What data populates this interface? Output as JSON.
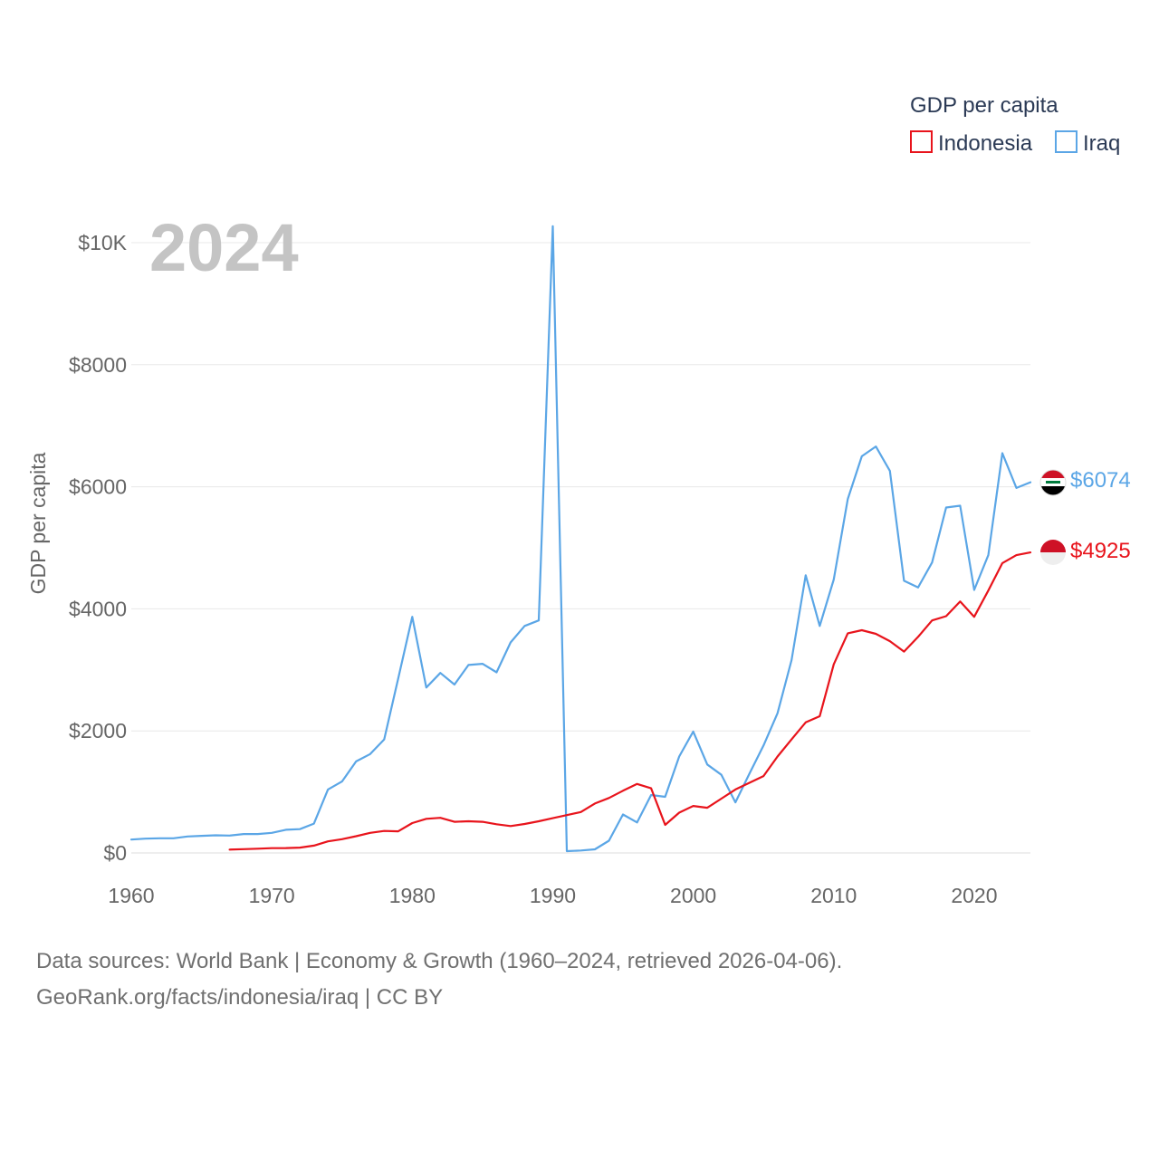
{
  "chart_data": {
    "type": "line",
    "title": "GDP per capita",
    "year_label": "2024",
    "ylabel": "GDP per capita",
    "xlabel": "",
    "xlim": [
      1960,
      2024
    ],
    "ylim": [
      0,
      10000
    ],
    "x_ticks": [
      1960,
      1970,
      1980,
      1990,
      2000,
      2010,
      2020
    ],
    "y_ticks": [
      {
        "value": 0,
        "label": "$0"
      },
      {
        "value": 2000,
        "label": "$2000"
      },
      {
        "value": 4000,
        "label": "$4000"
      },
      {
        "value": 6000,
        "label": "$6000"
      },
      {
        "value": 8000,
        "label": "$8000"
      },
      {
        "value": 10000,
        "label": "$10K"
      }
    ],
    "grid": true,
    "legend_title": "GDP per capita",
    "legend_position": "top-right",
    "series": [
      {
        "name": "Indonesia",
        "color": "#e8141c",
        "end_label": "$4925",
        "x": [
          1967,
          1968,
          1969,
          1970,
          1971,
          1972,
          1973,
          1974,
          1975,
          1976,
          1977,
          1978,
          1979,
          1980,
          1981,
          1982,
          1983,
          1984,
          1985,
          1986,
          1987,
          1988,
          1989,
          1990,
          1991,
          1992,
          1993,
          1994,
          1995,
          1996,
          1997,
          1998,
          1999,
          2000,
          2001,
          2002,
          2003,
          2004,
          2005,
          2006,
          2007,
          2008,
          2009,
          2010,
          2011,
          2012,
          2013,
          2014,
          2015,
          2016,
          2017,
          2018,
          2019,
          2020,
          2021,
          2022,
          2023,
          2024
        ],
        "values": [
          55,
          62,
          70,
          78,
          80,
          88,
          120,
          190,
          225,
          275,
          330,
          360,
          355,
          490,
          560,
          575,
          510,
          520,
          510,
          470,
          440,
          475,
          520,
          570,
          620,
          670,
          810,
          900,
          1020,
          1130,
          1060,
          460,
          660,
          770,
          740,
          890,
          1040,
          1150,
          1260,
          1580,
          1860,
          2140,
          2240,
          3090,
          3600,
          3650,
          3590,
          3470,
          3300,
          3540,
          3810,
          3880,
          4120,
          3870,
          4300,
          4750,
          4880,
          4925
        ]
      },
      {
        "name": "Iraq",
        "color": "#5ba6e6",
        "end_label": "$6074",
        "x": [
          1960,
          1961,
          1962,
          1963,
          1964,
          1965,
          1966,
          1967,
          1968,
          1969,
          1970,
          1971,
          1972,
          1973,
          1974,
          1975,
          1976,
          1977,
          1978,
          1979,
          1980,
          1981,
          1982,
          1983,
          1984,
          1985,
          1986,
          1987,
          1988,
          1989,
          1990,
          1991,
          1992,
          1993,
          1994,
          1995,
          1996,
          1997,
          1998,
          1999,
          2000,
          2001,
          2002,
          2003,
          2004,
          2005,
          2006,
          2007,
          2008,
          2009,
          2010,
          2011,
          2012,
          2013,
          2014,
          2015,
          2016,
          2017,
          2018,
          2019,
          2020,
          2021,
          2022,
          2023,
          2024
        ],
        "values": [
          220,
          235,
          240,
          240,
          270,
          280,
          290,
          285,
          310,
          310,
          330,
          380,
          390,
          480,
          1040,
          1170,
          1500,
          1620,
          1860,
          2860,
          3870,
          2710,
          2950,
          2760,
          3080,
          3100,
          2960,
          3450,
          3720,
          3810,
          10270,
          30,
          40,
          60,
          200,
          630,
          500,
          950,
          920,
          1580,
          1990,
          1450,
          1280,
          830,
          1300,
          1760,
          2290,
          3160,
          4550,
          3720,
          4480,
          5800,
          6500,
          6660,
          6260,
          4460,
          4350,
          4760,
          5660,
          5690,
          4310,
          4880,
          6550,
          5980,
          6074
        ]
      }
    ]
  },
  "footer": {
    "line1": "Data sources: World Bank | Economy & Growth (1960–2024, retrieved 2026-04-06).",
    "line2": "GeoRank.org/facts/indonesia/iraq | CC BY"
  }
}
